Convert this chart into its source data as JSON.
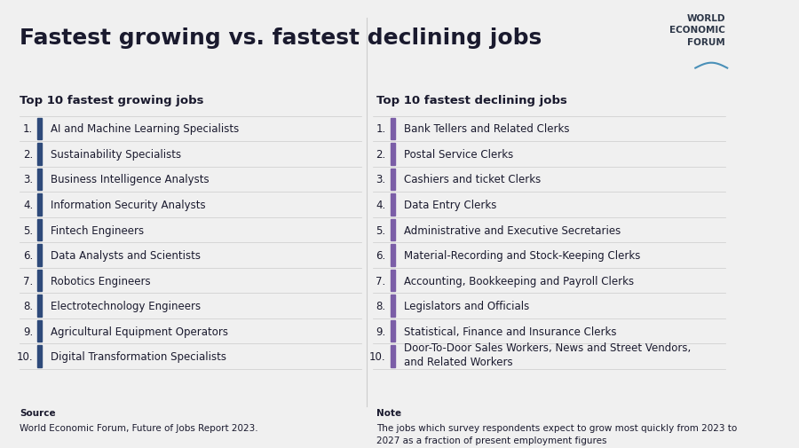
{
  "title": "Fastest growing vs. fastest declining jobs",
  "bg_color": "#f0f0f0",
  "title_color": "#1a1a2e",
  "growing_header": "Top 10 fastest growing jobs",
  "declining_header": "Top 10 fastest declining jobs",
  "growing_jobs": [
    "AI and Machine Learning Specialists",
    "Sustainability Specialists",
    "Business Intelligence Analysts",
    "Information Security Analysts",
    "Fintech Engineers",
    "Data Analysts and Scientists",
    "Robotics Engineers",
    "Electrotechnology Engineers",
    "Agricultural Equipment Operators",
    "Digital Transformation Specialists"
  ],
  "declining_jobs": [
    "Bank Tellers and Related Clerks",
    "Postal Service Clerks",
    "Cashiers and ticket Clerks",
    "Data Entry Clerks",
    "Administrative and Executive Secretaries",
    "Material-Recording and Stock-Keeping Clerks",
    "Accounting, Bookkeeping and Payroll Clerks",
    "Legislators and Officials",
    "Statistical, Finance and Insurance Clerks",
    "Door-To-Door Sales Workers, News and Street Vendors,\nand Related Workers"
  ],
  "growing_bar_color": "#2e4a7a",
  "declining_bar_color": "#7b5ea7",
  "row_line_color": "#cccccc",
  "source_label": "Source",
  "source_text": "World Economic Forum, Future of Jobs Report 2023.",
  "note_label": "Note",
  "note_text": "The jobs which survey respondents expect to grow most quickly from 2023 to\n2027 as a fraction of present employment figures",
  "wef_text": "WORLD\nECONOMIC\nFORUM",
  "wef_color": "#2d3748",
  "header_fontsize": 9.5,
  "title_fontsize": 18,
  "row_fontsize": 8.5,
  "number_fontsize": 8.5,
  "footer_label_fontsize": 7.5,
  "footer_text_fontsize": 7.5
}
